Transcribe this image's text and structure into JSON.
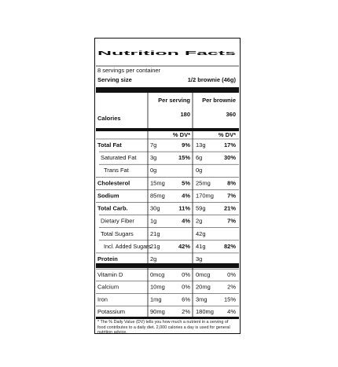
{
  "header": {
    "title": "Nutrition Facts",
    "servings": "8 servings per container",
    "serving_size_label": "Serving size",
    "serving_size_value": "1/2 brownie (46g)"
  },
  "columns": [
    "Per serving",
    "Per brownie"
  ],
  "calories": {
    "label": "Calories",
    "values": [
      "180",
      "360"
    ]
  },
  "dv_headers": [
    "% DV*",
    "% DV*"
  ],
  "rows": [
    {
      "name": "Total Fat",
      "serving": {
        "amount": "7g",
        "dv": "9%"
      },
      "brownie": {
        "amount": "13g",
        "dv": "17%"
      }
    },
    {
      "name": "Saturated Fat",
      "serving": {
        "amount": "3g",
        "dv": "15%"
      },
      "brownie": {
        "amount": "6g",
        "dv": "30%"
      }
    },
    {
      "name": "Trans Fat",
      "serving": {
        "amount": "0g"
      },
      "brownie": {
        "amount": "0g"
      }
    },
    {
      "name": "Cholesterol",
      "serving": {
        "amount": "15mg",
        "dv": "5%"
      },
      "brownie": {
        "amount": "25mg",
        "dv": "8%"
      }
    },
    {
      "name": "Sodium",
      "serving": {
        "amount": "85mg",
        "dv": "4%"
      },
      "brownie": {
        "amount": "170mg",
        "dv": "7%"
      }
    },
    {
      "name": "Total Carb.",
      "serving": {
        "amount": "30g",
        "dv": "11%"
      },
      "brownie": {
        "amount": "59g",
        "dv": "21%"
      }
    },
    {
      "name": "Dietary Fiber",
      "serving": {
        "amount": "1g",
        "dv": "4%"
      },
      "brownie": {
        "amount": "2g",
        "dv": "7%"
      }
    },
    {
      "name": "Total Sugars",
      "serving": {
        "amount": "21g"
      },
      "brownie": {
        "amount": "42g"
      }
    },
    {
      "name": "Incl. Added Sugars",
      "serving": {
        "amount": "21g",
        "dv": "42%"
      },
      "brownie": {
        "amount": "41g",
        "dv": "82%"
      }
    },
    {
      "name": "Protein",
      "serving": {
        "amount": "2g"
      },
      "brownie": {
        "amount": "3g"
      }
    }
  ],
  "vitamins": [
    {
      "name": "Vitamin D",
      "serving": {
        "amount": "0mcg",
        "dv": "0%"
      },
      "brownie": {
        "amount": "0mcg",
        "dv": "0%"
      }
    },
    {
      "name": "Calcium",
      "serving": {
        "amount": "10mg",
        "dv": "0%"
      },
      "brownie": {
        "amount": "20mg",
        "dv": "2%"
      }
    },
    {
      "name": "Iron",
      "serving": {
        "amount": "1mg",
        "dv": "6%"
      },
      "brownie": {
        "amount": "3mg",
        "dv": "15%"
      }
    },
    {
      "name": "Potassium",
      "serving": {
        "amount": "90mg",
        "dv": "2%"
      },
      "brownie": {
        "amount": "180mg",
        "dv": "4%"
      }
    }
  ],
  "footnote": "* The % Daily Value (DV) tells you how much a nutrient in a serving of food contributes to a daily diet. 2,000 calories a day is used for general nutrition advice."
}
